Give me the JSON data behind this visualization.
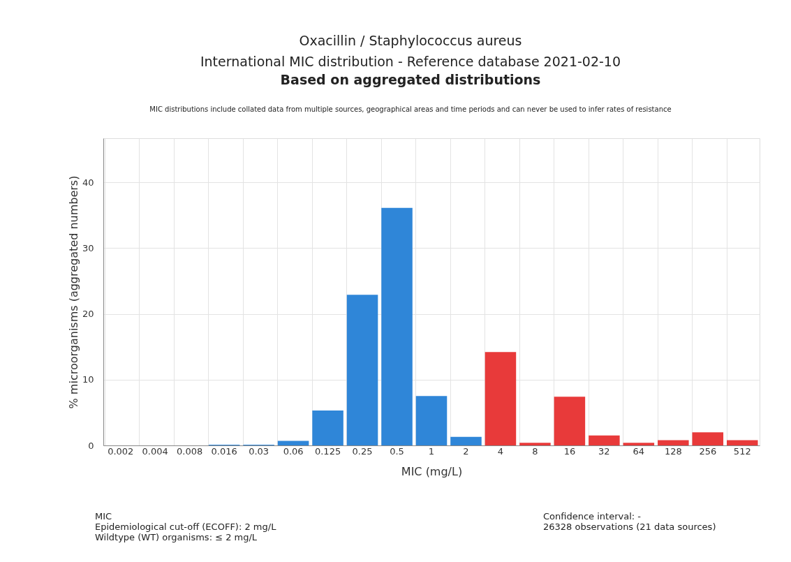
{
  "chart_data": {
    "type": "bar",
    "title": "Oxacillin / Staphylococcus aureus",
    "subtitle": "International MIC distribution - Reference database 2021-02-10",
    "xlabel": "MIC (mg/L)",
    "ylabel": "% microorganisms (aggregated numbers)",
    "categories": [
      "0.002",
      "0.004",
      "0.008",
      "0.016",
      "0.03",
      "0.06",
      "0.125",
      "0.25",
      "0.5",
      "1",
      "2",
      "4",
      "8",
      "16",
      "32",
      "64",
      "128",
      "256",
      "512"
    ],
    "values": [
      0,
      0,
      0,
      0.1,
      0.1,
      0.7,
      5.3,
      22.9,
      36.1,
      7.5,
      1.3,
      14.2,
      0.4,
      7.4,
      1.5,
      0.4,
      0.8,
      2.0,
      0.8
    ],
    "colors": [
      "#2f86d8",
      "#2f86d8",
      "#2f86d8",
      "#2f86d8",
      "#2f86d8",
      "#2f86d8",
      "#2f86d8",
      "#2f86d8",
      "#2f86d8",
      "#2f86d8",
      "#2f86d8",
      "#e83a3a",
      "#e83a3a",
      "#e83a3a",
      "#e83a3a",
      "#e83a3a",
      "#e83a3a",
      "#e83a3a",
      "#e83a3a"
    ],
    "ylim": [
      0,
      46.7
    ],
    "yticks": [
      0,
      10,
      20,
      30,
      40
    ],
    "grid": true,
    "annotations": [
      "Based on aggregated distributions",
      "MIC distributions include collated data from multiple sources, geographical areas and time periods and can never be used to infer rates of resistance",
      "MIC\nEpidemiological cut-off (ECOFF): 2 mg/L\nWildtype (WT) organisms: ≤ 2 mg/L",
      "Confidence interval: -\n26328 observations (21 data sources)"
    ]
  }
}
